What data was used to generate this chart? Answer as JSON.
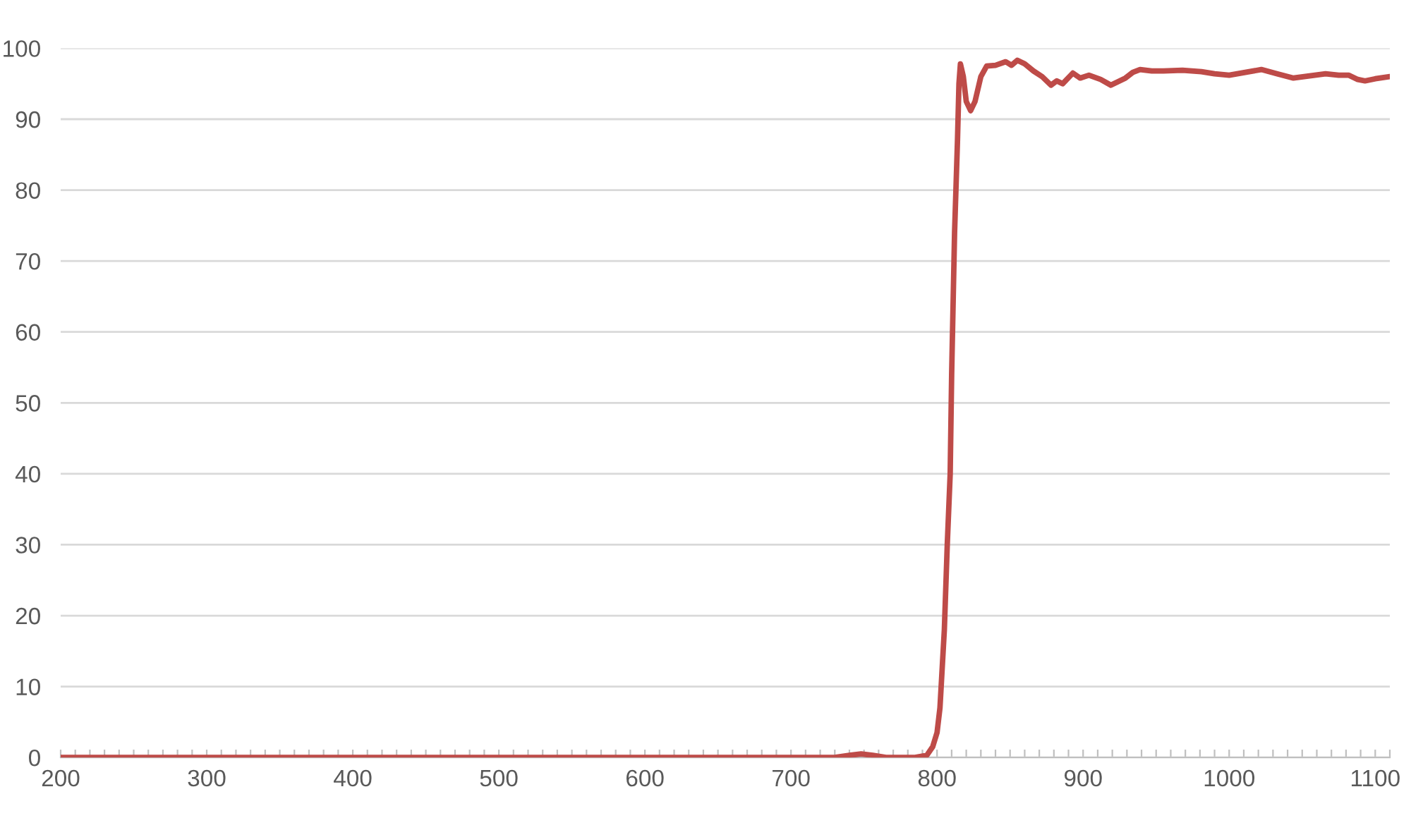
{
  "chart_data": {
    "type": "line",
    "x": [
      200,
      300,
      400,
      500,
      600,
      700,
      730,
      740,
      748,
      756,
      765,
      785,
      793,
      797,
      800,
      802,
      805,
      807,
      809,
      810,
      812,
      814,
      815,
      816,
      818,
      820,
      823,
      826,
      830,
      834,
      840,
      847,
      851,
      855,
      860,
      866,
      872,
      878,
      882,
      886,
      893,
      898,
      904,
      912,
      919,
      924,
      929,
      934,
      939,
      947,
      955,
      968,
      981,
      990,
      1000,
      1011,
      1022,
      1033,
      1044,
      1055,
      1066,
      1075,
      1082,
      1088,
      1093,
      1100,
      1110
    ],
    "series": [
      {
        "color": "#be4b48",
        "values": [
          0,
          0,
          0,
          0,
          0,
          0,
          0,
          0.3,
          0.5,
          0.3,
          0,
          0,
          0.3,
          1.5,
          3.5,
          7,
          18,
          30,
          40,
          54,
          74,
          87,
          95,
          97.8,
          96,
          92.5,
          91.2,
          92.5,
          96,
          97.5,
          97.6,
          98.1,
          97.6,
          98.3,
          97.8,
          96.8,
          96,
          94.8,
          95.4,
          95,
          96.5,
          95.8,
          96.2,
          95.6,
          94.8,
          95.3,
          95.8,
          96.6,
          97,
          96.8,
          96.8,
          96.9,
          96.7,
          96.4,
          96.2,
          96.6,
          97,
          96.4,
          95.8,
          96.1,
          96.4,
          96.2,
          96.2,
          95.6,
          95.4,
          95.7,
          96
        ]
      }
    ],
    "xlim": [
      200,
      1110
    ],
    "xticks": [
      200,
      {
        "value": 210,
        "label": null
      },
      {
        "value": 220,
        "label": null
      },
      {
        "value": 230,
        "label": null
      },
      {
        "value": 240,
        "label": null
      },
      {
        "value": 250,
        "label": null
      },
      {
        "value": 260,
        "label": null
      },
      {
        "value": 270,
        "label": null
      },
      {
        "value": 280,
        "label": null
      },
      {
        "value": 290,
        "label": null
      },
      300,
      {
        "value": 310,
        "label": null
      },
      {
        "value": 320,
        "label": null
      },
      {
        "value": 330,
        "label": null
      },
      {
        "value": 340,
        "label": null
      },
      {
        "value": 350,
        "label": null
      },
      {
        "value": 360,
        "label": null
      },
      {
        "value": 370,
        "label": null
      },
      {
        "value": 380,
        "label": null
      },
      {
        "value": 390,
        "label": null
      },
      400,
      {
        "value": 410,
        "label": null
      },
      {
        "value": 420,
        "label": null
      },
      {
        "value": 430,
        "label": null
      },
      {
        "value": 440,
        "label": null
      },
      {
        "value": 450,
        "label": null
      },
      {
        "value": 460,
        "label": null
      },
      {
        "value": 470,
        "label": null
      },
      {
        "value": 480,
        "label": null
      },
      {
        "value": 490,
        "label": null
      },
      500,
      {
        "value": 510,
        "label": null
      },
      {
        "value": 520,
        "label": null
      },
      {
        "value": 530,
        "label": null
      },
      {
        "value": 540,
        "label": null
      },
      {
        "value": 550,
        "label": null
      },
      {
        "value": 560,
        "label": null
      },
      {
        "value": 570,
        "label": null
      },
      {
        "value": 580,
        "label": null
      },
      {
        "value": 590,
        "label": null
      },
      600,
      {
        "value": 610,
        "label": null
      },
      {
        "value": 620,
        "label": null
      },
      {
        "value": 630,
        "label": null
      },
      {
        "value": 640,
        "label": null
      },
      {
        "value": 650,
        "label": null
      },
      {
        "value": 660,
        "label": null
      },
      {
        "value": 670,
        "label": null
      },
      {
        "value": 680,
        "label": null
      },
      {
        "value": 690,
        "label": null
      },
      700,
      {
        "value": 710,
        "label": null
      },
      {
        "value": 720,
        "label": null
      },
      {
        "value": 730,
        "label": null
      },
      {
        "value": 740,
        "label": null
      },
      {
        "value": 750,
        "label": null
      },
      {
        "value": 760,
        "label": null
      },
      {
        "value": 770,
        "label": null
      },
      {
        "value": 780,
        "label": null
      },
      {
        "value": 790,
        "label": null
      },
      800,
      {
        "value": 810,
        "label": null
      },
      {
        "value": 820,
        "label": null
      },
      {
        "value": 830,
        "label": null
      },
      {
        "value": 840,
        "label": null
      },
      {
        "value": 850,
        "label": null
      },
      {
        "value": 860,
        "label": null
      },
      {
        "value": 870,
        "label": null
      },
      {
        "value": 880,
        "label": null
      },
      {
        "value": 890,
        "label": null
      },
      900,
      {
        "value": 910,
        "label": null
      },
      {
        "value": 920,
        "label": null
      },
      {
        "value": 930,
        "label": null
      },
      {
        "value": 940,
        "label": null
      },
      {
        "value": 950,
        "label": null
      },
      {
        "value": 960,
        "label": null
      },
      {
        "value": 970,
        "label": null
      },
      {
        "value": 980,
        "label": null
      },
      {
        "value": 990,
        "label": null
      },
      1000,
      {
        "value": 1010,
        "label": null
      },
      {
        "value": 1020,
        "label": null
      },
      {
        "value": 1030,
        "label": null
      },
      {
        "value": 1040,
        "label": null
      },
      {
        "value": 1050,
        "label": null
      },
      {
        "value": 1060,
        "label": null
      },
      {
        "value": 1070,
        "label": null
      },
      {
        "value": 1080,
        "label": null
      },
      {
        "value": 1090,
        "label": null
      },
      1100,
      {
        "value": 1110,
        "label": null
      }
    ],
    "ylim": [
      0,
      100
    ],
    "yticks": [
      0,
      10,
      20,
      30,
      40,
      50,
      60,
      70,
      80,
      90,
      100
    ],
    "grid": "y"
  }
}
